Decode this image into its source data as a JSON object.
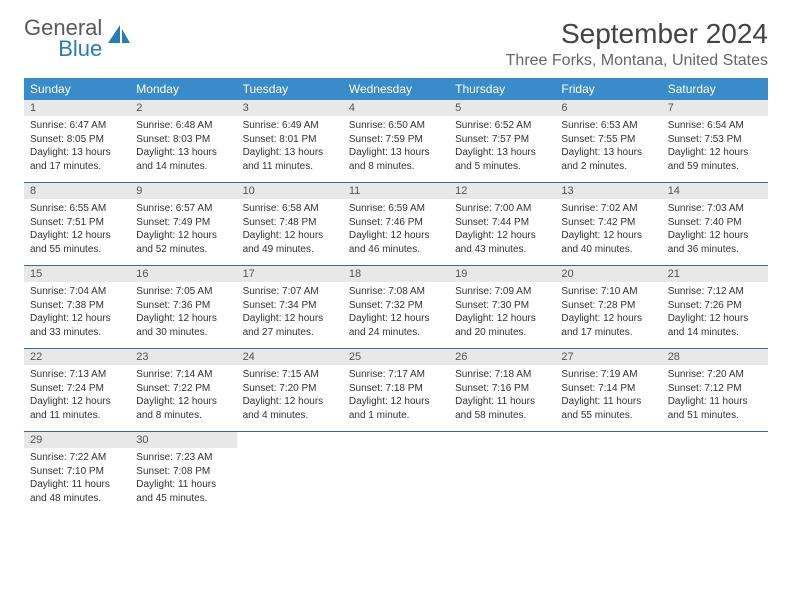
{
  "brand": {
    "part1": "General",
    "part2": "Blue"
  },
  "title": "September 2024",
  "location": "Three Forks, Montana, United States",
  "colors": {
    "header_bg": "#3a8bc9",
    "daynum_bg": "#e8e8e8",
    "border": "#3a6a9a"
  },
  "day_names": [
    "Sunday",
    "Monday",
    "Tuesday",
    "Wednesday",
    "Thursday",
    "Friday",
    "Saturday"
  ],
  "weeks": [
    [
      {
        "n": "1",
        "sr": "Sunrise: 6:47 AM",
        "ss": "Sunset: 8:05 PM",
        "dl": "Daylight: 13 hours and 17 minutes."
      },
      {
        "n": "2",
        "sr": "Sunrise: 6:48 AM",
        "ss": "Sunset: 8:03 PM",
        "dl": "Daylight: 13 hours and 14 minutes."
      },
      {
        "n": "3",
        "sr": "Sunrise: 6:49 AM",
        "ss": "Sunset: 8:01 PM",
        "dl": "Daylight: 13 hours and 11 minutes."
      },
      {
        "n": "4",
        "sr": "Sunrise: 6:50 AM",
        "ss": "Sunset: 7:59 PM",
        "dl": "Daylight: 13 hours and 8 minutes."
      },
      {
        "n": "5",
        "sr": "Sunrise: 6:52 AM",
        "ss": "Sunset: 7:57 PM",
        "dl": "Daylight: 13 hours and 5 minutes."
      },
      {
        "n": "6",
        "sr": "Sunrise: 6:53 AM",
        "ss": "Sunset: 7:55 PM",
        "dl": "Daylight: 13 hours and 2 minutes."
      },
      {
        "n": "7",
        "sr": "Sunrise: 6:54 AM",
        "ss": "Sunset: 7:53 PM",
        "dl": "Daylight: 12 hours and 59 minutes."
      }
    ],
    [
      {
        "n": "8",
        "sr": "Sunrise: 6:55 AM",
        "ss": "Sunset: 7:51 PM",
        "dl": "Daylight: 12 hours and 55 minutes."
      },
      {
        "n": "9",
        "sr": "Sunrise: 6:57 AM",
        "ss": "Sunset: 7:49 PM",
        "dl": "Daylight: 12 hours and 52 minutes."
      },
      {
        "n": "10",
        "sr": "Sunrise: 6:58 AM",
        "ss": "Sunset: 7:48 PM",
        "dl": "Daylight: 12 hours and 49 minutes."
      },
      {
        "n": "11",
        "sr": "Sunrise: 6:59 AM",
        "ss": "Sunset: 7:46 PM",
        "dl": "Daylight: 12 hours and 46 minutes."
      },
      {
        "n": "12",
        "sr": "Sunrise: 7:00 AM",
        "ss": "Sunset: 7:44 PM",
        "dl": "Daylight: 12 hours and 43 minutes."
      },
      {
        "n": "13",
        "sr": "Sunrise: 7:02 AM",
        "ss": "Sunset: 7:42 PM",
        "dl": "Daylight: 12 hours and 40 minutes."
      },
      {
        "n": "14",
        "sr": "Sunrise: 7:03 AM",
        "ss": "Sunset: 7:40 PM",
        "dl": "Daylight: 12 hours and 36 minutes."
      }
    ],
    [
      {
        "n": "15",
        "sr": "Sunrise: 7:04 AM",
        "ss": "Sunset: 7:38 PM",
        "dl": "Daylight: 12 hours and 33 minutes."
      },
      {
        "n": "16",
        "sr": "Sunrise: 7:05 AM",
        "ss": "Sunset: 7:36 PM",
        "dl": "Daylight: 12 hours and 30 minutes."
      },
      {
        "n": "17",
        "sr": "Sunrise: 7:07 AM",
        "ss": "Sunset: 7:34 PM",
        "dl": "Daylight: 12 hours and 27 minutes."
      },
      {
        "n": "18",
        "sr": "Sunrise: 7:08 AM",
        "ss": "Sunset: 7:32 PM",
        "dl": "Daylight: 12 hours and 24 minutes."
      },
      {
        "n": "19",
        "sr": "Sunrise: 7:09 AM",
        "ss": "Sunset: 7:30 PM",
        "dl": "Daylight: 12 hours and 20 minutes."
      },
      {
        "n": "20",
        "sr": "Sunrise: 7:10 AM",
        "ss": "Sunset: 7:28 PM",
        "dl": "Daylight: 12 hours and 17 minutes."
      },
      {
        "n": "21",
        "sr": "Sunrise: 7:12 AM",
        "ss": "Sunset: 7:26 PM",
        "dl": "Daylight: 12 hours and 14 minutes."
      }
    ],
    [
      {
        "n": "22",
        "sr": "Sunrise: 7:13 AM",
        "ss": "Sunset: 7:24 PM",
        "dl": "Daylight: 12 hours and 11 minutes."
      },
      {
        "n": "23",
        "sr": "Sunrise: 7:14 AM",
        "ss": "Sunset: 7:22 PM",
        "dl": "Daylight: 12 hours and 8 minutes."
      },
      {
        "n": "24",
        "sr": "Sunrise: 7:15 AM",
        "ss": "Sunset: 7:20 PM",
        "dl": "Daylight: 12 hours and 4 minutes."
      },
      {
        "n": "25",
        "sr": "Sunrise: 7:17 AM",
        "ss": "Sunset: 7:18 PM",
        "dl": "Daylight: 12 hours and 1 minute."
      },
      {
        "n": "26",
        "sr": "Sunrise: 7:18 AM",
        "ss": "Sunset: 7:16 PM",
        "dl": "Daylight: 11 hours and 58 minutes."
      },
      {
        "n": "27",
        "sr": "Sunrise: 7:19 AM",
        "ss": "Sunset: 7:14 PM",
        "dl": "Daylight: 11 hours and 55 minutes."
      },
      {
        "n": "28",
        "sr": "Sunrise: 7:20 AM",
        "ss": "Sunset: 7:12 PM",
        "dl": "Daylight: 11 hours and 51 minutes."
      }
    ],
    [
      {
        "n": "29",
        "sr": "Sunrise: 7:22 AM",
        "ss": "Sunset: 7:10 PM",
        "dl": "Daylight: 11 hours and 48 minutes."
      },
      {
        "n": "30",
        "sr": "Sunrise: 7:23 AM",
        "ss": "Sunset: 7:08 PM",
        "dl": "Daylight: 11 hours and 45 minutes."
      },
      {
        "empty": true,
        "n": "",
        "sr": "",
        "ss": "",
        "dl": ""
      },
      {
        "empty": true,
        "n": "",
        "sr": "",
        "ss": "",
        "dl": ""
      },
      {
        "empty": true,
        "n": "",
        "sr": "",
        "ss": "",
        "dl": ""
      },
      {
        "empty": true,
        "n": "",
        "sr": "",
        "ss": "",
        "dl": ""
      },
      {
        "empty": true,
        "n": "",
        "sr": "",
        "ss": "",
        "dl": ""
      }
    ]
  ]
}
